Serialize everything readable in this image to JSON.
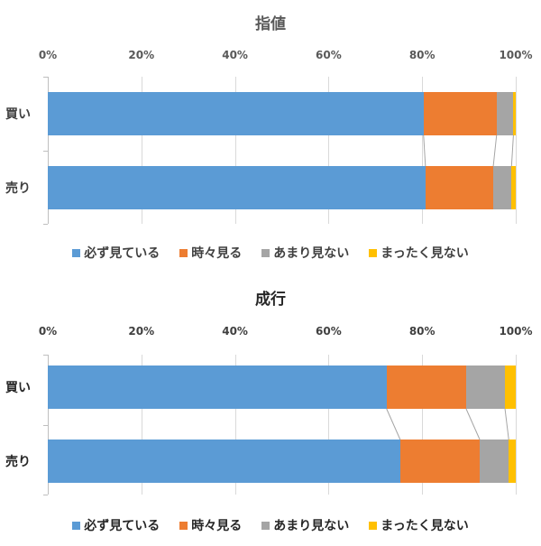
{
  "colors": {
    "always": "#5b9bd5",
    "sometimes": "#ed7d31",
    "rarely": "#a5a5a5",
    "never": "#ffc000"
  },
  "chart_data": [
    {
      "type": "bar",
      "orientation": "horizontal",
      "stacked": "percent",
      "title": "指値",
      "categories": [
        "買い",
        "売り"
      ],
      "series": [
        {
          "name": "必ず見ている",
          "values": [
            80.3,
            80.7
          ]
        },
        {
          "name": "時々見る",
          "values": [
            15.6,
            14.5
          ]
        },
        {
          "name": "あまり見ない",
          "values": [
            3.6,
            3.9
          ]
        },
        {
          "name": "まったく見ない",
          "values": [
            0.5,
            0.9
          ]
        }
      ],
      "xlabel": "",
      "ylabel": "",
      "xlim": [
        0,
        100
      ],
      "x_ticks": [
        "0%",
        "20%",
        "40%",
        "60%",
        "80%",
        "100%"
      ],
      "x_axis_position": "top",
      "grid": true,
      "series_lines": true,
      "legend_position": "bottom"
    },
    {
      "type": "bar",
      "orientation": "horizontal",
      "stacked": "percent",
      "title": "成行",
      "categories": [
        "買い",
        "売り"
      ],
      "series": [
        {
          "name": "必ず見ている",
          "values": [
            72.4,
            75.3
          ]
        },
        {
          "name": "時々見る",
          "values": [
            17.0,
            17.0
          ]
        },
        {
          "name": "あまり見ない",
          "values": [
            8.3,
            6.2
          ]
        },
        {
          "name": "まったく見ない",
          "values": [
            2.3,
            1.5
          ]
        }
      ],
      "xlabel": "",
      "ylabel": "",
      "xlim": [
        0,
        100
      ],
      "x_ticks": [
        "0%",
        "20%",
        "40%",
        "60%",
        "80%",
        "100%"
      ],
      "x_axis_position": "top",
      "grid": true,
      "series_lines": true,
      "legend_position": "bottom"
    }
  ]
}
